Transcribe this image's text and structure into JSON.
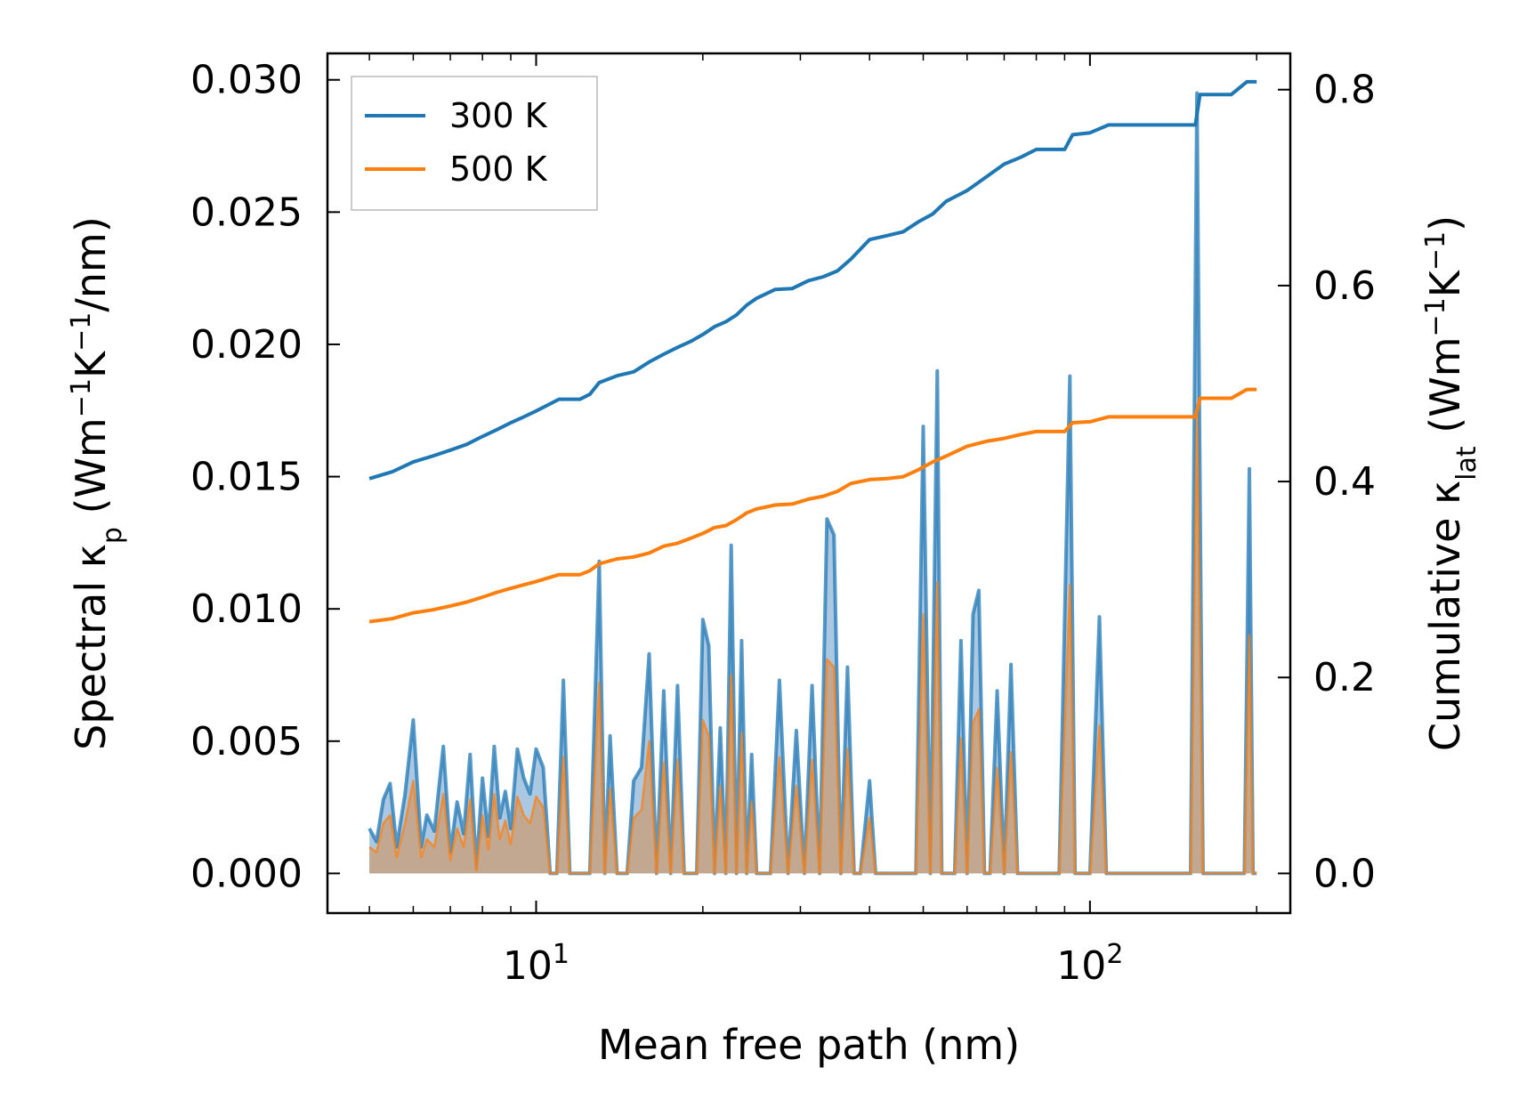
{
  "chart_data": {
    "type": "line",
    "title": "",
    "xlabel": "Mean free path (nm)",
    "ylabel_left": {
      "text": "Spectral κ",
      "sub": "p",
      "unit_prefix": " (Wm",
      "exp1": "−1",
      "mid": "K",
      "exp2": "−1",
      "unit_suffix": "/nm)"
    },
    "ylabel_right": {
      "text": "Cumulative κ",
      "sub": "lat",
      "unit_prefix": " (Wm",
      "exp1": "−1",
      "mid": "K",
      "exp2": "−1",
      "unit_suffix": ")"
    },
    "x_scale": "log",
    "xlim": [
      4.2,
      230
    ],
    "ylim_left": [
      -0.0015,
      0.031
    ],
    "ylim_right": [
      -0.0405,
      0.837
    ],
    "x_major_ticks": [
      {
        "value": 10,
        "base": "10",
        "exp": "1"
      },
      {
        "value": 100,
        "base": "10",
        "exp": "2"
      }
    ],
    "x_minor_ticks": [
      5,
      6,
      7,
      8,
      9,
      20,
      30,
      40,
      50,
      60,
      70,
      80,
      90,
      200
    ],
    "y_left_ticks": [
      "0.000",
      "0.005",
      "0.010",
      "0.015",
      "0.020",
      "0.025",
      "0.030"
    ],
    "y_right_ticks": [
      "0.0",
      "0.2",
      "0.4",
      "0.6",
      "0.8"
    ],
    "legend": {
      "location": "upper-left",
      "entries": [
        "300 K",
        "500 K"
      ]
    },
    "colors": {
      "300 K": "#1f77b4",
      "500 K": "#ff7f0e",
      "fill_300": "#8fb6d9",
      "fill_500": "#c8a07a"
    },
    "cumulative_series": [
      {
        "name": "300 K",
        "axis": "right",
        "x": [
          5,
          5.5,
          6,
          6.5,
          7,
          7.5,
          8,
          8.5,
          9,
          9.5,
          10,
          11,
          12,
          12.5,
          13,
          14,
          15,
          16,
          17,
          18,
          19,
          20,
          21,
          22,
          23,
          24,
          25,
          27,
          29,
          31,
          33,
          35,
          37,
          40,
          43,
          46,
          49,
          52,
          55,
          60,
          65,
          70,
          75,
          80,
          90,
          93,
          100,
          108,
          120,
          140,
          155,
          158,
          180,
          192,
          200
        ],
        "y": [
          0.403,
          0.41,
          0.42,
          0.426,
          0.432,
          0.438,
          0.446,
          0.453,
          0.46,
          0.466,
          0.472,
          0.484,
          0.484,
          0.489,
          0.501,
          0.508,
          0.512,
          0.522,
          0.53,
          0.537,
          0.543,
          0.55,
          0.558,
          0.563,
          0.57,
          0.58,
          0.587,
          0.596,
          0.597,
          0.605,
          0.609,
          0.615,
          0.627,
          0.647,
          0.651,
          0.655,
          0.665,
          0.673,
          0.686,
          0.697,
          0.711,
          0.724,
          0.731,
          0.739,
          0.739,
          0.754,
          0.756,
          0.764,
          0.764,
          0.764,
          0.764,
          0.795,
          0.795,
          0.808,
          0.808
        ]
      },
      {
        "name": "500 K",
        "axis": "right",
        "x": [
          5,
          5.5,
          6,
          6.5,
          7,
          7.5,
          8,
          8.5,
          9,
          10,
          11,
          12,
          12.5,
          13,
          14,
          15,
          16,
          17,
          18,
          19,
          20,
          21,
          22,
          23,
          24,
          25,
          27,
          29,
          31,
          33,
          35,
          37,
          40,
          43,
          46,
          49,
          52,
          55,
          60,
          65,
          70,
          75,
          80,
          90,
          93,
          100,
          108,
          120,
          140,
          155,
          158,
          180,
          192,
          200
        ],
        "y": [
          0.257,
          0.26,
          0.266,
          0.269,
          0.273,
          0.277,
          0.282,
          0.287,
          0.291,
          0.298,
          0.305,
          0.305,
          0.309,
          0.316,
          0.321,
          0.323,
          0.327,
          0.334,
          0.337,
          0.342,
          0.347,
          0.353,
          0.355,
          0.361,
          0.368,
          0.372,
          0.376,
          0.377,
          0.382,
          0.385,
          0.39,
          0.398,
          0.402,
          0.403,
          0.405,
          0.412,
          0.42,
          0.426,
          0.436,
          0.441,
          0.444,
          0.448,
          0.451,
          0.451,
          0.46,
          0.461,
          0.466,
          0.466,
          0.466,
          0.466,
          0.485,
          0.485,
          0.494,
          0.494
        ]
      }
    ],
    "spectral_series": [
      {
        "name": "300 K",
        "axis": "left",
        "x": [
          5,
          5.15,
          5.3,
          5.45,
          5.6,
          5.8,
          6.0,
          6.2,
          6.35,
          6.55,
          6.8,
          7.0,
          7.2,
          7.4,
          7.6,
          7.8,
          8.0,
          8.2,
          8.4,
          8.6,
          8.8,
          9.0,
          9.25,
          9.5,
          9.75,
          10.0,
          10.3,
          10.6,
          10.9,
          11.2,
          11.5,
          12.0,
          12.5,
          13.0,
          13.3,
          13.6,
          14.0,
          14.3,
          14.6,
          15.0,
          15.5,
          16.0,
          16.5,
          17.0,
          17.5,
          18.0,
          18.5,
          19.0,
          19.5,
          20.0,
          20.5,
          21.0,
          21.5,
          22.0,
          22.5,
          23.0,
          23.5,
          24.0,
          24.5,
          25.0,
          25.5,
          26.0,
          26.5,
          27.5,
          28.5,
          29.5,
          30.5,
          31.5,
          32.5,
          33.5,
          34.5,
          35.5,
          36.5,
          37.5,
          38.5,
          40.0,
          41.0,
          42.5,
          44.0,
          45.5,
          47.0,
          48.5,
          50.0,
          51.5,
          53.0,
          54.0,
          55.5,
          57.0,
          58.5,
          60.0,
          61.5,
          63.0,
          64.5,
          66.0,
          68.0,
          70.0,
          72.0,
          74.0,
          76.0,
          78.0,
          82.0,
          88.0,
          92.0,
          94.0,
          96.0,
          100.0,
          104.0,
          107.0,
          110.0,
          120.0,
          140.0,
          152.0,
          156.0,
          160.0,
          165.0,
          180.0,
          190.0,
          194.0,
          197.0,
          200.0
        ],
        "y": [
          0.0017,
          0.0012,
          0.0028,
          0.0034,
          0.001,
          0.003,
          0.0058,
          0.001,
          0.0022,
          0.0016,
          0.0048,
          0.0008,
          0.0027,
          0.0015,
          0.0045,
          0.0002,
          0.0036,
          0.0014,
          0.0048,
          0.0021,
          0.0031,
          0.0017,
          0.0047,
          0.0036,
          0.003,
          0.0047,
          0.004,
          0.0,
          0.0,
          0.0073,
          0.0,
          0.0,
          0.0,
          0.0118,
          0.0,
          0.0052,
          0.0,
          0.0,
          0.0,
          0.0035,
          0.004,
          0.0083,
          0.0,
          0.0069,
          0.0,
          0.0071,
          0.0,
          0.0,
          0.0,
          0.0096,
          0.0086,
          0.0,
          0.0055,
          0.0,
          0.0124,
          0.0,
          0.0088,
          0.0,
          0.0045,
          0.0,
          0.0,
          0.0,
          0.0,
          0.0073,
          0.0,
          0.0054,
          0.0,
          0.0071,
          0.0,
          0.0134,
          0.0128,
          0.0,
          0.0078,
          0.0,
          0.0,
          0.0035,
          0.0,
          0.0,
          0.0,
          0.0,
          0.0,
          0.0,
          0.0169,
          0.0,
          0.019,
          0.0,
          0.0,
          0.0,
          0.0088,
          0.0,
          0.0098,
          0.0107,
          0.0,
          0.0,
          0.0069,
          0.0,
          0.0079,
          0.0,
          0.0,
          0.0,
          0.0,
          0.0,
          0.0188,
          0.0,
          0.0,
          0.0,
          0.0097,
          0.0,
          0.0,
          0.0,
          0.0,
          0.0,
          0.0295,
          0.0,
          0.0,
          0.0,
          0.0,
          0.0153,
          0.0,
          0.0
        ]
      },
      {
        "name": "500 K",
        "axis": "left",
        "x": [
          5,
          5.15,
          5.3,
          5.45,
          5.6,
          5.8,
          6.0,
          6.2,
          6.35,
          6.55,
          6.8,
          7.0,
          7.2,
          7.4,
          7.6,
          7.8,
          8.0,
          8.2,
          8.4,
          8.6,
          8.8,
          9.0,
          9.25,
          9.5,
          9.75,
          10.0,
          10.3,
          10.6,
          10.9,
          11.2,
          11.5,
          12.0,
          12.5,
          13.0,
          13.3,
          13.6,
          14.0,
          14.3,
          14.6,
          15.0,
          15.5,
          16.0,
          16.5,
          17.0,
          17.5,
          18.0,
          18.5,
          19.0,
          19.5,
          20.0,
          20.5,
          21.0,
          21.5,
          22.0,
          22.5,
          23.0,
          23.5,
          24.0,
          24.5,
          25.0,
          25.5,
          26.0,
          26.5,
          27.5,
          28.5,
          29.5,
          30.5,
          31.5,
          32.5,
          33.5,
          34.5,
          35.5,
          36.5,
          37.5,
          38.5,
          40.0,
          41.0,
          42.5,
          44.0,
          45.5,
          47.0,
          48.5,
          50.0,
          51.5,
          53.0,
          54.0,
          55.5,
          57.0,
          58.5,
          60.0,
          61.5,
          63.0,
          64.5,
          66.0,
          68.0,
          70.0,
          72.0,
          74.0,
          76.0,
          78.0,
          82.0,
          88.0,
          92.0,
          94.0,
          96.0,
          100.0,
          104.0,
          107.0,
          110.0,
          120.0,
          140.0,
          152.0,
          156.0,
          160.0,
          165.0,
          180.0,
          190.0,
          194.0,
          197.0,
          200.0
        ],
        "y": [
          0.001,
          0.0008,
          0.0019,
          0.0022,
          0.0006,
          0.0019,
          0.0035,
          0.0006,
          0.0013,
          0.001,
          0.003,
          0.0005,
          0.0017,
          0.001,
          0.0028,
          0.0001,
          0.0022,
          0.0009,
          0.003,
          0.0013,
          0.002,
          0.0011,
          0.0029,
          0.0022,
          0.0019,
          0.0029,
          0.0025,
          0.0,
          0.0,
          0.0044,
          0.0,
          0.0,
          0.0,
          0.0072,
          0.0,
          0.0032,
          0.0,
          0.0,
          0.0,
          0.0021,
          0.0024,
          0.005,
          0.0,
          0.0042,
          0.0,
          0.0043,
          0.0,
          0.0,
          0.0,
          0.0058,
          0.0052,
          0.0,
          0.0033,
          0.0,
          0.0075,
          0.0,
          0.0053,
          0.0,
          0.0027,
          0.0,
          0.0,
          0.0,
          0.0,
          0.0044,
          0.0,
          0.0033,
          0.0,
          0.0043,
          0.0,
          0.0081,
          0.0078,
          0.0,
          0.0047,
          0.0,
          0.0,
          0.0021,
          0.0,
          0.0,
          0.0,
          0.0,
          0.0,
          0.0,
          0.0098,
          0.0,
          0.011,
          0.0,
          0.0,
          0.0,
          0.0051,
          0.0,
          0.0057,
          0.0062,
          0.0,
          0.0,
          0.004,
          0.0,
          0.0046,
          0.0,
          0.0,
          0.0,
          0.0,
          0.0,
          0.0109,
          0.0,
          0.0,
          0.0,
          0.0056,
          0.0,
          0.0,
          0.0,
          0.0,
          0.0,
          0.0175,
          0.0,
          0.0,
          0.0,
          0.0,
          0.009,
          0.0,
          0.0
        ]
      }
    ]
  }
}
